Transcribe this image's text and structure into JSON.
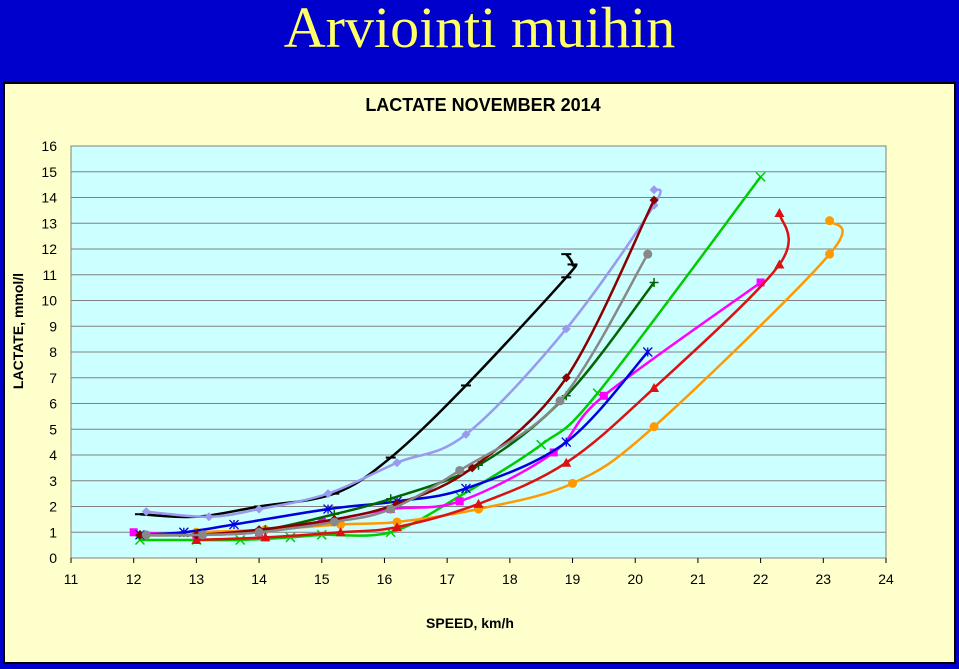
{
  "slide": {
    "title": "Arviointi muihin"
  },
  "colors": {
    "background": "#0000cc",
    "title": "#ffff66",
    "chart_bg": "#ffffcc",
    "plot_bg": "#ccffff"
  },
  "chart_data": {
    "type": "line",
    "title": "LACTATE NOVEMBER 2014",
    "xlabel": "SPEED, km/h",
    "ylabel": "LACTATE, mmol/l",
    "xlim": [
      11,
      24
    ],
    "ylim": [
      0,
      16
    ],
    "xticks": [
      11,
      12,
      13,
      14,
      15,
      16,
      17,
      18,
      19,
      20,
      21,
      22,
      23,
      24
    ],
    "yticks": [
      0,
      1,
      2,
      3,
      4,
      5,
      6,
      7,
      8,
      9,
      10,
      11,
      12,
      13,
      14,
      15,
      16
    ],
    "grid": true,
    "legend": "none",
    "series": [
      {
        "color": "#000000",
        "marker": "dash",
        "points": [
          [
            12.1,
            1.7
          ],
          [
            13,
            1.6
          ],
          [
            14,
            2.0
          ],
          [
            15.2,
            2.5
          ],
          [
            16.1,
            3.9
          ],
          [
            17.3,
            6.7
          ],
          [
            18.9,
            10.9
          ],
          [
            19.0,
            11.4
          ],
          [
            18.9,
            11.8
          ]
        ]
      },
      {
        "color": "#9999ee",
        "marker": "diamond",
        "points": [
          [
            12.2,
            1.8
          ],
          [
            13.2,
            1.6
          ],
          [
            14.0,
            1.9
          ],
          [
            15.1,
            2.5
          ],
          [
            16.2,
            3.7
          ],
          [
            17.3,
            4.8
          ],
          [
            18.9,
            8.9
          ],
          [
            20.3,
            13.7
          ],
          [
            20.3,
            14.3
          ]
        ]
      },
      {
        "color": "#00cc00",
        "marker": "x",
        "points": [
          [
            12.1,
            0.7
          ],
          [
            13.0,
            0.7
          ],
          [
            13.7,
            0.7
          ],
          [
            14.5,
            0.8
          ],
          [
            15.0,
            0.9
          ],
          [
            16.1,
            1.0
          ],
          [
            17.2,
            2.4
          ],
          [
            18.5,
            4.4
          ],
          [
            19.4,
            6.4
          ],
          [
            22.0,
            14.8
          ]
        ]
      },
      {
        "color": "#ff00ff",
        "marker": "square",
        "points": [
          [
            12.0,
            1.0
          ],
          [
            13.0,
            0.9
          ],
          [
            14.0,
            1.0
          ],
          [
            15.0,
            1.4
          ],
          [
            16.1,
            1.9
          ],
          [
            17.2,
            2.2
          ],
          [
            18.7,
            4.1
          ],
          [
            19.5,
            6.3
          ],
          [
            22.0,
            10.7
          ]
        ]
      },
      {
        "color": "#ff9900",
        "marker": "circle",
        "points": [
          [
            13.0,
            1.0
          ],
          [
            14.1,
            1.1
          ],
          [
            15.3,
            1.3
          ],
          [
            16.2,
            1.4
          ],
          [
            17.5,
            1.9
          ],
          [
            19.0,
            2.9
          ],
          [
            20.3,
            5.1
          ],
          [
            23.1,
            11.8
          ],
          [
            23.1,
            13.1
          ]
        ]
      },
      {
        "color": "#dd1111",
        "marker": "triangle",
        "points": [
          [
            13.0,
            0.7
          ],
          [
            14.1,
            0.8
          ],
          [
            15.3,
            1.0
          ],
          [
            16.2,
            1.2
          ],
          [
            17.5,
            2.1
          ],
          [
            18.9,
            3.7
          ],
          [
            20.3,
            6.6
          ],
          [
            22.3,
            11.4
          ],
          [
            22.3,
            13.4
          ]
        ]
      },
      {
        "color": "#0000dd",
        "marker": "asterisk",
        "points": [
          [
            12.1,
            0.9
          ],
          [
            12.8,
            1.0
          ],
          [
            13.6,
            1.3
          ],
          [
            15.1,
            1.9
          ],
          [
            16.2,
            2.2
          ],
          [
            17.3,
            2.7
          ],
          [
            18.9,
            4.5
          ],
          [
            20.2,
            8.0
          ]
        ]
      },
      {
        "color": "#006600",
        "marker": "plus",
        "points": [
          [
            12.1,
            0.9
          ],
          [
            13.0,
            0.9
          ],
          [
            14.1,
            1.1
          ],
          [
            15.2,
            1.7
          ],
          [
            16.1,
            2.3
          ],
          [
            17.5,
            3.6
          ],
          [
            18.9,
            6.3
          ],
          [
            20.3,
            10.7
          ]
        ]
      },
      {
        "color": "#880000",
        "marker": "diamond",
        "points": [
          [
            12.1,
            0.9
          ],
          [
            13.0,
            0.9
          ],
          [
            14.0,
            1.1
          ],
          [
            15.2,
            1.5
          ],
          [
            16.2,
            2.1
          ],
          [
            17.4,
            3.5
          ],
          [
            18.9,
            7.0
          ],
          [
            20.3,
            13.9
          ]
        ]
      },
      {
        "color": "#888888",
        "marker": "circle",
        "points": [
          [
            12.2,
            0.9
          ],
          [
            13.1,
            0.9
          ],
          [
            14.0,
            1.0
          ],
          [
            15.2,
            1.4
          ],
          [
            16.1,
            1.9
          ],
          [
            17.2,
            3.4
          ],
          [
            18.8,
            6.1
          ],
          [
            20.2,
            11.8
          ]
        ]
      }
    ]
  }
}
